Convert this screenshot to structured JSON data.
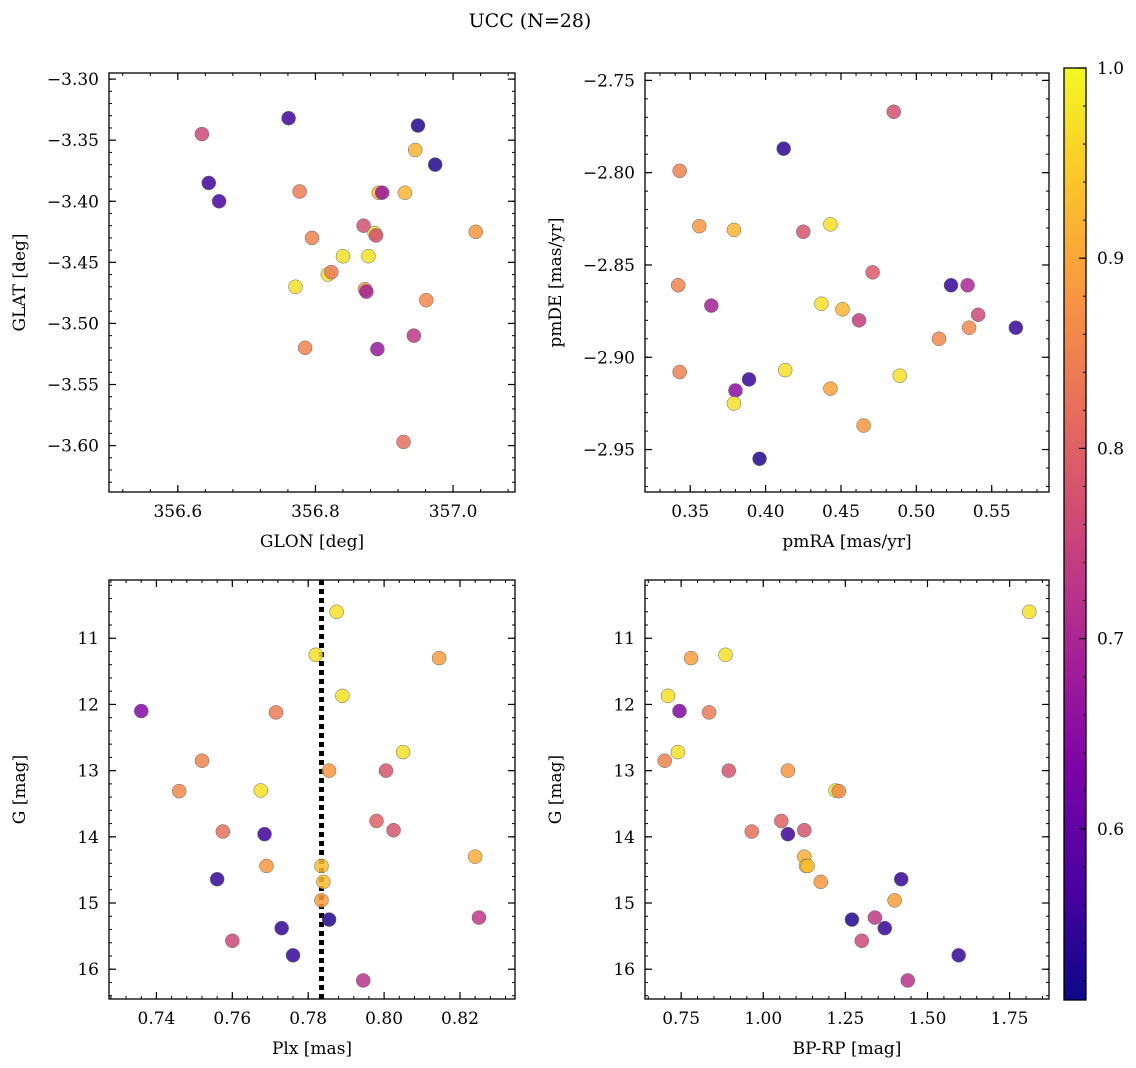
{
  "figure": {
    "title": "UCC (N=28)"
  },
  "colorbar": {
    "cmap": "plasma",
    "min": 0.51,
    "max": 1.0,
    "ticks": [
      "0.6",
      "0.7",
      "0.8",
      "0.9",
      "1.0"
    ],
    "tick_values": [
      0.6,
      0.7,
      0.8,
      0.9,
      1.0
    ]
  },
  "chart_data": [
    {
      "type": "scatter",
      "id": "glon_glat",
      "xlabel": "GLON [deg]",
      "ylabel": "GLAT [deg]",
      "xlim": [
        356.5,
        357.09
      ],
      "ylim": [
        -3.638,
        -3.295
      ],
      "xticks": [
        356.6,
        356.8,
        357.0
      ],
      "xtick_labels": [
        "356.6",
        "356.8",
        "357.0"
      ],
      "yticks": [
        -3.3,
        -3.35,
        -3.4,
        -3.45,
        -3.5,
        -3.55,
        -3.6
      ],
      "ytick_labels": [
        "−3.30",
        "−3.35",
        "−3.40",
        "−3.45",
        "−3.50",
        "−3.55",
        "−3.60"
      ],
      "x": [
        356.635,
        356.645,
        356.66,
        356.761,
        356.771,
        356.777,
        356.785,
        356.795,
        356.818,
        356.823,
        356.84,
        356.87,
        356.872,
        356.874,
        356.877,
        356.886,
        356.888,
        356.89,
        356.892,
        356.897,
        356.928,
        356.93,
        356.943,
        356.945,
        356.949,
        356.961,
        356.974,
        357.033
      ],
      "y": [
        -3.345,
        -3.385,
        -3.4,
        -3.332,
        -3.47,
        -3.392,
        -3.52,
        -3.43,
        -3.46,
        -3.458,
        -3.445,
        -3.42,
        -3.472,
        -3.474,
        -3.445,
        -3.426,
        -3.428,
        -3.521,
        -3.393,
        -3.393,
        -3.597,
        -3.393,
        -3.51,
        -3.358,
        -3.338,
        -3.481,
        -3.37,
        -3.425
      ],
      "c": [
        0.76,
        0.56,
        0.57,
        0.56,
        0.97,
        0.84,
        0.85,
        0.85,
        0.97,
        0.84,
        0.97,
        0.77,
        0.87,
        0.69,
        0.97,
        0.97,
        0.77,
        0.67,
        0.92,
        0.67,
        0.82,
        0.92,
        0.73,
        0.92,
        0.53,
        0.86,
        0.53,
        0.88
      ]
    },
    {
      "type": "scatter",
      "id": "pm",
      "xlabel": "pmRA [mas/yr]",
      "ylabel": "pmDE [mas/yr]",
      "xlim": [
        0.32,
        0.588
      ],
      "ylim": [
        -2.973,
        -2.746
      ],
      "xticks": [
        0.35,
        0.4,
        0.45,
        0.5,
        0.55
      ],
      "xtick_labels": [
        "0.35",
        "0.40",
        "0.45",
        "0.50",
        "0.55"
      ],
      "yticks": [
        -2.75,
        -2.8,
        -2.85,
        -2.9,
        -2.95
      ],
      "ytick_labels": [
        "−2.75",
        "−2.80",
        "−2.85",
        "−2.90",
        "−2.95"
      ],
      "x": [
        0.485,
        0.343,
        0.412,
        0.356,
        0.379,
        0.443,
        0.425,
        0.342,
        0.471,
        0.364,
        0.523,
        0.534,
        0.566,
        0.541,
        0.437,
        0.451,
        0.462,
        0.515,
        0.535,
        0.343,
        0.413,
        0.489,
        0.38,
        0.389,
        0.443,
        0.465,
        0.379,
        0.396
      ],
      "y": [
        -2.767,
        -2.799,
        -2.787,
        -2.829,
        -2.831,
        -2.828,
        -2.832,
        -2.861,
        -2.854,
        -2.872,
        -2.861,
        -2.861,
        -2.884,
        -2.877,
        -2.871,
        -2.874,
        -2.88,
        -2.89,
        -2.884,
        -2.908,
        -2.907,
        -2.91,
        -2.918,
        -2.912,
        -2.917,
        -2.937,
        -2.925,
        -2.955
      ],
      "c": [
        0.77,
        0.85,
        0.54,
        0.88,
        0.92,
        0.97,
        0.78,
        0.85,
        0.79,
        0.69,
        0.55,
        0.7,
        0.55,
        0.76,
        0.97,
        0.92,
        0.74,
        0.86,
        0.86,
        0.85,
        0.97,
        0.97,
        0.65,
        0.55,
        0.9,
        0.88,
        0.97,
        0.53
      ]
    },
    {
      "type": "scatter",
      "id": "plx_g",
      "xlabel": "Plx [mas]",
      "ylabel": "G [mag]",
      "xlim": [
        0.7275,
        0.8345
      ],
      "ylim": [
        16.45,
        10.12
      ],
      "y_inverted": true,
      "xticks": [
        0.74,
        0.76,
        0.78,
        0.8,
        0.82
      ],
      "xtick_labels": [
        "0.74",
        "0.76",
        "0.78",
        "0.80",
        "0.82"
      ],
      "yticks": [
        11,
        12,
        13,
        14,
        15,
        16
      ],
      "ytick_labels": [
        "11",
        "12",
        "13",
        "14",
        "15",
        "16"
      ],
      "vline": {
        "x": 0.7835,
        "style": "dotted"
      },
      "x": [
        0.7875,
        0.782,
        0.8145,
        0.789,
        0.736,
        0.7715,
        0.805,
        0.752,
        0.7855,
        0.8005,
        0.746,
        0.7675,
        0.798,
        0.7575,
        0.8025,
        0.7685,
        0.7835,
        0.769,
        0.824,
        0.756,
        0.784,
        0.7835,
        0.7855,
        0.825,
        0.773,
        0.76,
        0.776,
        0.7945
      ],
      "y": [
        10.6,
        11.25,
        11.3,
        11.87,
        12.1,
        12.12,
        12.72,
        12.85,
        13.0,
        13.0,
        13.31,
        13.3,
        13.76,
        13.92,
        13.9,
        13.96,
        14.44,
        14.44,
        14.3,
        14.64,
        14.68,
        14.96,
        15.25,
        15.22,
        15.38,
        15.57,
        15.79,
        16.17
      ],
      "c": [
        0.97,
        0.97,
        0.89,
        0.97,
        0.64,
        0.84,
        0.97,
        0.85,
        0.88,
        0.78,
        0.86,
        0.97,
        0.8,
        0.82,
        0.78,
        0.56,
        0.93,
        0.88,
        0.91,
        0.55,
        0.93,
        0.89,
        0.53,
        0.73,
        0.55,
        0.76,
        0.55,
        0.72
      ]
    },
    {
      "type": "scatter",
      "id": "bprp_g",
      "xlabel": "BP-RP [mag]",
      "ylabel": "G [mag]",
      "xlim": [
        0.64,
        1.87
      ],
      "ylim": [
        16.45,
        10.12
      ],
      "y_inverted": true,
      "xticks": [
        0.75,
        1.0,
        1.25,
        1.5,
        1.75
      ],
      "xtick_labels": [
        "0.75",
        "1.00",
        "1.25",
        "1.50",
        "1.75"
      ],
      "yticks": [
        11,
        12,
        13,
        14,
        15,
        16
      ],
      "ytick_labels": [
        "11",
        "12",
        "13",
        "14",
        "15",
        "16"
      ],
      "x": [
        1.81,
        0.78,
        0.885,
        0.71,
        0.745,
        0.835,
        0.74,
        0.7,
        0.895,
        1.075,
        1.22,
        1.23,
        1.055,
        1.125,
        0.965,
        1.075,
        1.125,
        1.13,
        1.135,
        1.175,
        1.42,
        1.4,
        1.27,
        1.34,
        1.37,
        1.3,
        1.595,
        1.44
      ],
      "y": [
        10.6,
        11.3,
        11.25,
        11.87,
        12.1,
        12.12,
        12.72,
        12.85,
        13.0,
        13.0,
        13.3,
        13.31,
        13.76,
        13.9,
        13.92,
        13.96,
        14.3,
        14.44,
        14.44,
        14.68,
        14.64,
        14.96,
        15.25,
        15.22,
        15.38,
        15.57,
        15.79,
        16.17
      ],
      "c": [
        0.97,
        0.89,
        0.97,
        0.97,
        0.64,
        0.84,
        0.97,
        0.85,
        0.78,
        0.88,
        0.97,
        0.86,
        0.8,
        0.78,
        0.82,
        0.56,
        0.91,
        0.93,
        0.93,
        0.88,
        0.55,
        0.89,
        0.53,
        0.73,
        0.55,
        0.76,
        0.55,
        0.72
      ]
    }
  ]
}
